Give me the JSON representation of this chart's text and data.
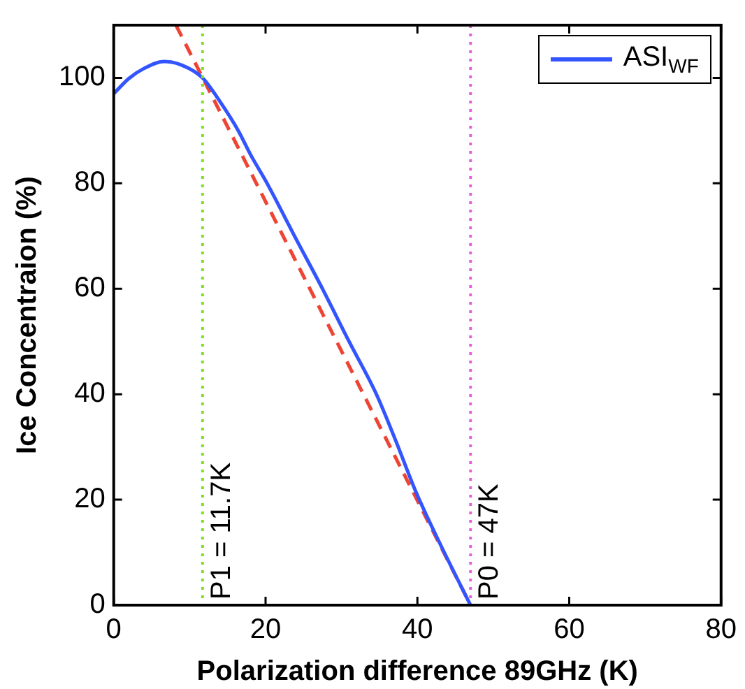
{
  "chart_data": {
    "type": "line",
    "xlabel": "Polarization difference 89GHz (K)",
    "ylabel": "Ice Concentraion (%)",
    "xlim": [
      0,
      80
    ],
    "ylim": [
      0,
      110
    ],
    "xticks": [
      0,
      20,
      40,
      60,
      80
    ],
    "yticks": [
      0,
      20,
      40,
      60,
      80,
      100
    ],
    "grid": false,
    "legend": "top right",
    "marker": "none",
    "series": [
      {
        "name": "ASI$_{WF}$",
        "color": "#3355ff",
        "line_style": "solid",
        "x": [
          0,
          2,
          4,
          6.6,
          9,
          11.7,
          14,
          16.4,
          18,
          20.2,
          24,
          27.5,
          31,
          34.6,
          37.2,
          39.8,
          43.2,
          47
        ],
        "values": [
          97,
          99.9,
          101.8,
          103.1,
          102.4,
          100,
          95.5,
          90,
          85.5,
          80,
          69.5,
          60,
          50,
          40,
          31,
          21.5,
          11,
          0
        ]
      },
      {
        "color": "#ee4433",
        "line_style": "dashed",
        "x": [
          8.2,
          47
        ],
        "values": [
          110,
          0
        ]
      }
    ],
    "ref_lines": [
      {
        "axis": "x",
        "value": 11.7,
        "label": "P1 = 11.7K",
        "color": "#80e020",
        "line_style": "dotted"
      },
      {
        "axis": "x",
        "value": 47,
        "label": "P0 = 47K",
        "color": "#e060e0",
        "line_style": "dotted"
      }
    ]
  }
}
